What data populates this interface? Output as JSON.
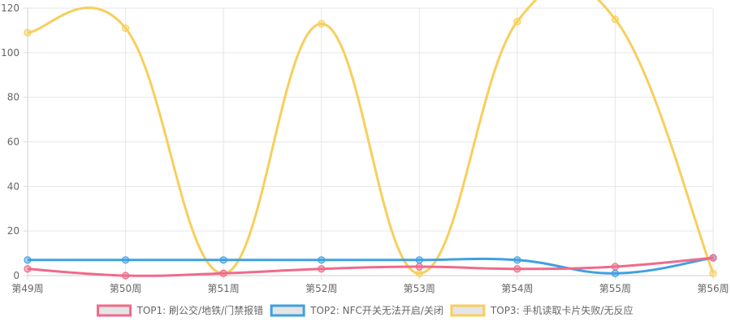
{
  "chart_data": {
    "type": "line",
    "title": "",
    "xlabel": "",
    "ylabel": "",
    "categories": [
      "第49周",
      "第50周",
      "第51周",
      "第52周",
      "第53周",
      "第54周",
      "第55周",
      "第56周"
    ],
    "ylim": [
      0,
      120
    ],
    "yticks": [
      "0",
      "20",
      "40",
      "60",
      "80",
      "100",
      "120"
    ],
    "grid": true,
    "legend_position": "bottom",
    "series": [
      {
        "name": "TOP1: 刷公交/地铁/门禁报错",
        "color": "#f06a8a",
        "values": [
          3,
          0,
          1,
          3,
          4,
          3,
          4,
          8
        ]
      },
      {
        "name": "TOP2: NFC开关无法开启/关闭",
        "color": "#3fa0e2",
        "values": [
          7,
          7,
          7,
          7,
          7,
          7,
          1,
          8
        ]
      },
      {
        "name": "TOP3: 手机读取卡片失败/无反应",
        "color": "#f7cf5c",
        "values": [
          109,
          111,
          1,
          113,
          1,
          114,
          115,
          1
        ]
      }
    ]
  }
}
